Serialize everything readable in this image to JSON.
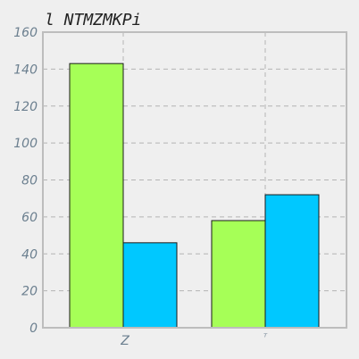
{
  "chart_data": {
    "type": "bar",
    "title": "l NTMZMKPi",
    "categories": [
      "Z",
      "ᵀ"
    ],
    "series": [
      {
        "values": [
          143,
          58
        ],
        "color": "#a6ff57"
      },
      {
        "values": [
          46,
          72
        ],
        "color": "#00c8ff"
      }
    ],
    "ylim": [
      0,
      160
    ],
    "yticks": [
      0,
      20,
      40,
      60,
      80,
      100,
      120,
      140,
      160
    ],
    "grid": true,
    "xlabel": "",
    "ylabel": ""
  }
}
